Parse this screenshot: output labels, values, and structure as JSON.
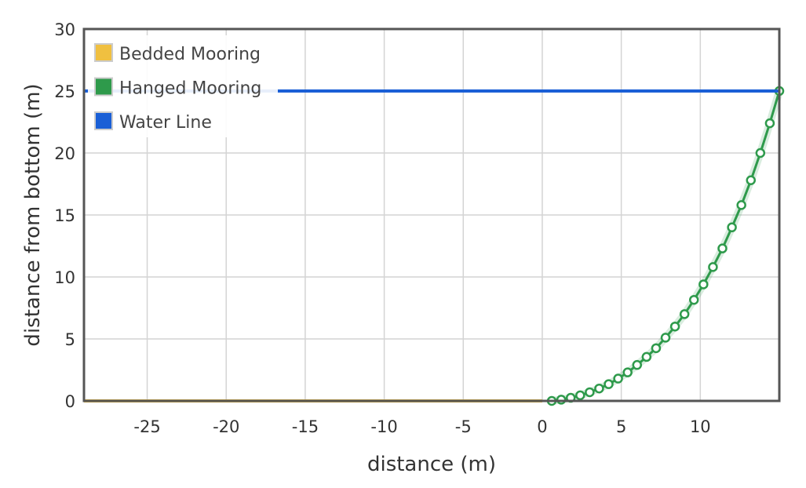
{
  "chart_data": {
    "type": "line",
    "xlabel": "distance (m)",
    "ylabel": "distance from bottom (m)",
    "xlim": [
      -29,
      15
    ],
    "ylim": [
      0,
      30
    ],
    "xticks": [
      -25,
      -20,
      -15,
      -10,
      -5,
      0,
      5,
      10
    ],
    "yticks": [
      0,
      5,
      10,
      15,
      20,
      25,
      30
    ],
    "grid": true,
    "legend_position": "top-left",
    "series": [
      {
        "name": "Bedded Mooring",
        "color": "#f0c040",
        "markers": false,
        "points": [
          [
            -29,
            0
          ],
          [
            0,
            0
          ]
        ]
      },
      {
        "name": "Hanged Mooring",
        "color": "#2e9a4b",
        "markers": true,
        "points": [
          [
            0.6,
            0.0
          ],
          [
            1.2,
            0.1
          ],
          [
            1.8,
            0.25
          ],
          [
            2.4,
            0.45
          ],
          [
            3.0,
            0.7
          ],
          [
            3.6,
            1.0
          ],
          [
            4.2,
            1.35
          ],
          [
            4.8,
            1.8
          ],
          [
            5.4,
            2.3
          ],
          [
            6.0,
            2.9
          ],
          [
            6.6,
            3.55
          ],
          [
            7.2,
            4.25
          ],
          [
            7.8,
            5.1
          ],
          [
            8.4,
            6.0
          ],
          [
            9.0,
            7.0
          ],
          [
            9.6,
            8.15
          ],
          [
            10.2,
            9.4
          ],
          [
            10.8,
            10.8
          ],
          [
            11.4,
            12.3
          ],
          [
            12.0,
            14.0
          ],
          [
            12.6,
            15.8
          ],
          [
            13.2,
            17.8
          ],
          [
            13.8,
            20.0
          ],
          [
            14.4,
            22.4
          ],
          [
            15.0,
            25.0
          ]
        ]
      },
      {
        "name": "Water Line",
        "color": "#1a5fd6",
        "markers": false,
        "points": [
          [
            -29,
            25
          ],
          [
            15,
            25
          ]
        ]
      }
    ]
  }
}
